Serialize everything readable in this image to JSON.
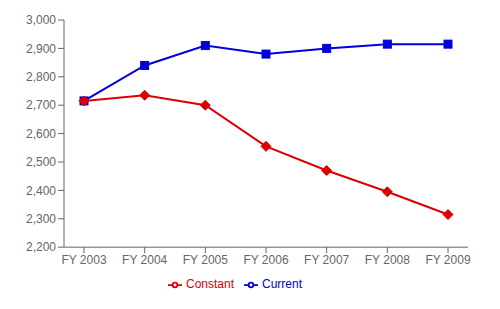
{
  "chart_data": {
    "type": "line",
    "categories": [
      "FY 2003",
      "FY 2004",
      "FY 2005",
      "FY 2006",
      "FY 2007",
      "FY 2008",
      "FY 2009"
    ],
    "series": [
      {
        "name": "Current",
        "color": "#0000DD",
        "marker": "square",
        "values": [
          2715,
          2840,
          2910,
          2880,
          2900,
          2915,
          2915
        ]
      },
      {
        "name": "Constant",
        "color": "#DD0000",
        "marker": "diamond",
        "values": [
          2715,
          2735,
          2700,
          2555,
          2470,
          2395,
          2315
        ]
      }
    ],
    "ylim": [
      2200,
      3000
    ],
    "yticks": [
      {
        "value": 2200,
        "label": "2,200"
      },
      {
        "value": 2300,
        "label": "2,300"
      },
      {
        "value": 2400,
        "label": "2,400"
      },
      {
        "value": 2500,
        "label": "2,500"
      },
      {
        "value": 2600,
        "label": "2,600"
      },
      {
        "value": 2700,
        "label": "2,700"
      },
      {
        "value": 2800,
        "label": "2,800"
      },
      {
        "value": 2900,
        "label": "2,900"
      },
      {
        "value": 3000,
        "label": "3,000"
      }
    ],
    "grid": false,
    "legend": "bottom"
  }
}
